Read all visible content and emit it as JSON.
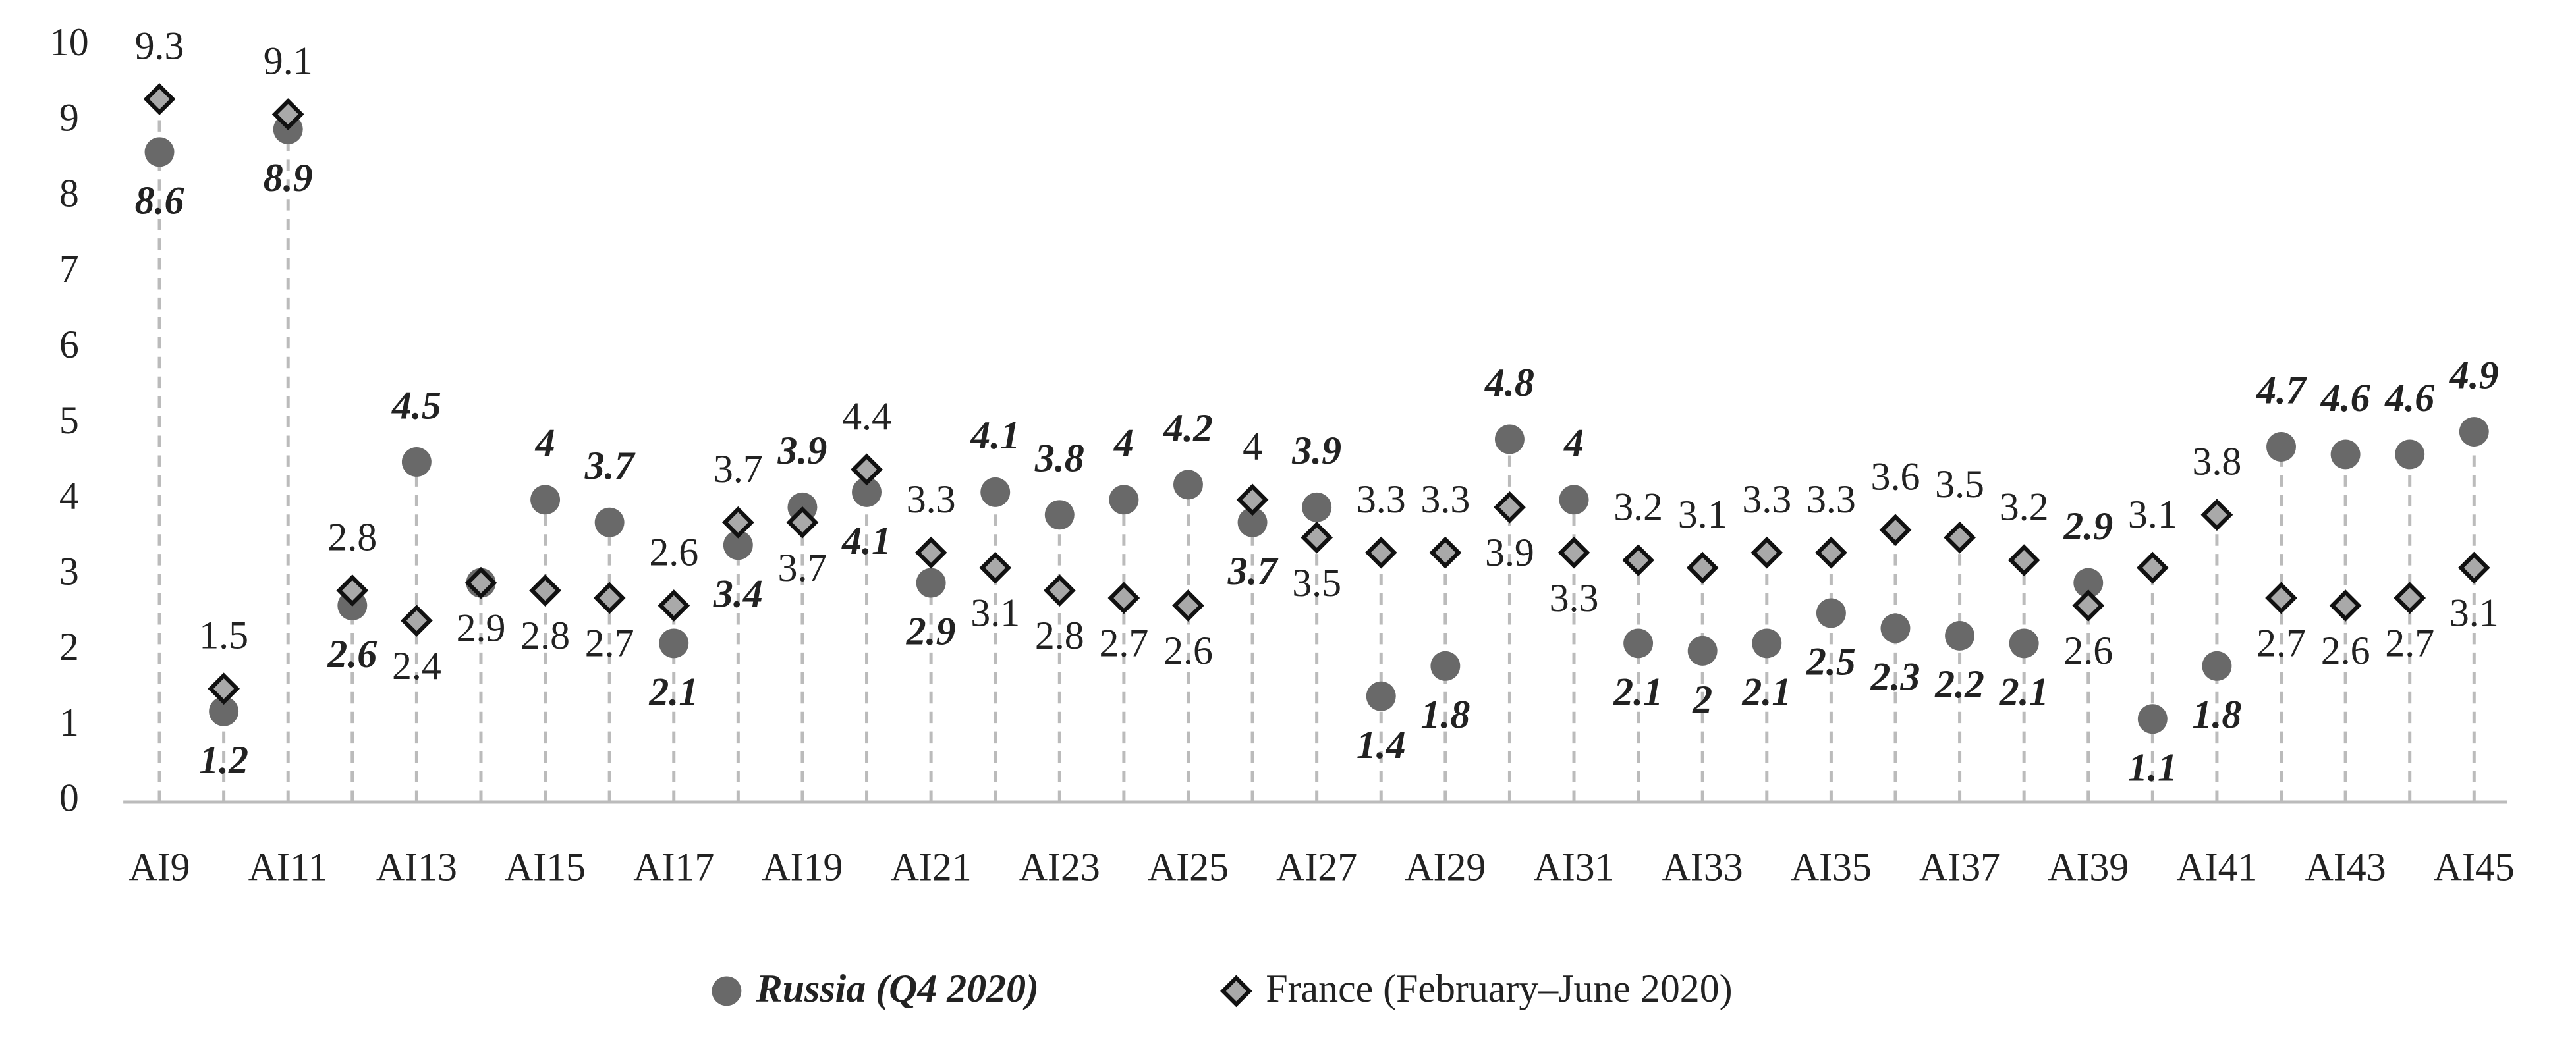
{
  "chart_data": {
    "type": "dot-plot",
    "categories": [
      "AI9",
      null,
      "AI11",
      null,
      "AI13",
      null,
      "AI15",
      null,
      "AI17",
      null,
      "AI19",
      null,
      "AI21",
      null,
      "AI23",
      null,
      "AI25",
      null,
      "AI27",
      null,
      "AI29",
      null,
      "AI31",
      null,
      "AI33",
      null,
      "AI35",
      null,
      "AI37",
      null,
      "AI39",
      null,
      "AI41",
      null,
      "AI43",
      null,
      "AI45"
    ],
    "series": [
      {
        "name": "Russia (Q4 2020)",
        "color": "#696969",
        "values": [
          8.6,
          1.2,
          8.9,
          2.6,
          4.5,
          2.9,
          4,
          3.7,
          2.1,
          3.4,
          3.9,
          4.1,
          2.9,
          4.1,
          3.8,
          4,
          4.2,
          3.7,
          3.9,
          1.4,
          1.8,
          4.8,
          4,
          2.1,
          2,
          2.1,
          2.5,
          2.3,
          2.2,
          2.1,
          2.9,
          1.1,
          1.8,
          4.7,
          4.6,
          4.6,
          4.9
        ],
        "value_labels": [
          "8.6",
          "1.2",
          "8.9",
          "2.6",
          "4.5",
          null,
          "4",
          "3.7",
          "2.1",
          "3.4",
          "3.9",
          "4.1",
          "2.9",
          "4.1",
          "3.8",
          "4",
          "4.2",
          "3.7",
          "3.9",
          "1.4",
          "1.8",
          "4.8",
          "4",
          "2.1",
          "2",
          "2.1",
          "2.5",
          "2.3",
          "2.2",
          "2.1",
          "2.9",
          "1.1",
          "1.8",
          "4.7",
          "4.6",
          "4.6",
          "4.9"
        ]
      },
      {
        "name": "France (February–June 2020)",
        "color": "#a9a9a9",
        "values": [
          9.3,
          1.5,
          9.1,
          2.8,
          2.4,
          2.9,
          2.8,
          2.7,
          2.6,
          3.7,
          3.7,
          4.4,
          3.3,
          3.1,
          2.8,
          2.7,
          2.6,
          4,
          3.5,
          3.3,
          3.3,
          3.9,
          3.3,
          3.2,
          3.1,
          3.3,
          3.3,
          3.6,
          3.5,
          3.2,
          2.6,
          3.1,
          3.8,
          2.7,
          2.6,
          2.7,
          3.1
        ]
      }
    ],
    "ylim": [
      0,
      10
    ],
    "yticks": [
      0,
      1,
      2,
      3,
      4,
      5,
      6,
      7,
      8,
      9,
      10
    ]
  }
}
